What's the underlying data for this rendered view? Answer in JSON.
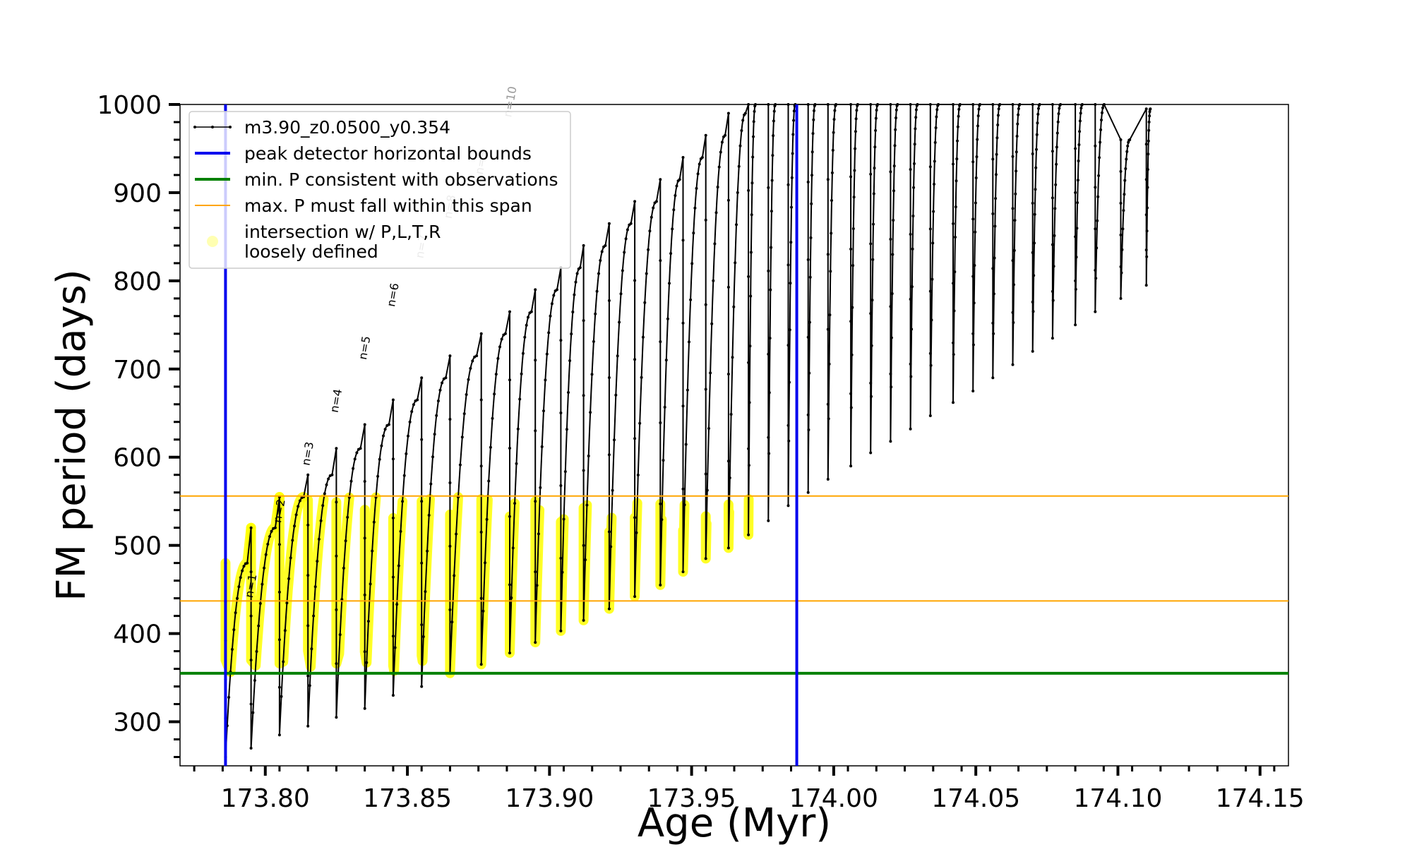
{
  "chart_data": {
    "type": "line",
    "title": "",
    "xlabel": "Age (Myr)",
    "ylabel": "FM period (days)",
    "xlim": [
      173.77,
      174.16
    ],
    "ylim": [
      250,
      1000
    ],
    "xticks": [
      "173.80",
      "173.85",
      "173.90",
      "173.95",
      "174.00",
      "174.05",
      "174.10",
      "174.15"
    ],
    "yticks": [
      "300",
      "400",
      "500",
      "600",
      "700",
      "800",
      "900",
      "1000"
    ],
    "grid": false,
    "legend_position": "upper-left",
    "legend": [
      {
        "label": "m3.90_z0.0500_y0.354",
        "style": "black-line-dots",
        "color": "#000000"
      },
      {
        "label": "peak detector horizontal bounds",
        "style": "line",
        "color": "#0000ee"
      },
      {
        "label": "min. P consistent with observations",
        "style": "line",
        "color": "#008000"
      },
      {
        "label": "max. P must fall within this span",
        "style": "line",
        "color": "#ffa500"
      },
      {
        "label": "intersection w/ P,L,T,R",
        "label2": "loosely defined",
        "style": "marker",
        "color": "#ffff00"
      }
    ],
    "vlines": [
      173.786,
      173.987
    ],
    "hline_min_p": 355,
    "hlines_max_span": [
      437,
      556
    ],
    "series": [
      {
        "name": "m3.90_z0.0500_y0.354",
        "color": "#000000",
        "pulse_ages": [
          173.786,
          173.795,
          173.805,
          173.815,
          173.825,
          173.835,
          173.845,
          173.855,
          173.865,
          173.876,
          173.886,
          173.895,
          173.904,
          173.912,
          173.921,
          173.93,
          173.939,
          173.947,
          173.955,
          173.963,
          173.97,
          173.977,
          173.984,
          173.991,
          173.998,
          174.006,
          174.013,
          174.02,
          174.027,
          174.034,
          174.042,
          174.049,
          174.056,
          174.063,
          174.07,
          174.077,
          174.085,
          174.092,
          174.101,
          174.11
        ],
        "pulse_min_period": [
          260,
          270,
          285,
          295,
          305,
          315,
          330,
          340,
          355,
          365,
          378,
          390,
          403,
          415,
          428,
          442,
          455,
          470,
          485,
          497,
          512,
          528,
          545,
          560,
          575,
          590,
          605,
          618,
          632,
          647,
          662,
          675,
          690,
          705,
          720,
          735,
          750,
          765,
          780,
          795
        ],
        "pulse_max_period": [
          480,
          520,
          555,
          580,
          610,
          637,
          665,
          690,
          715,
          740,
          765,
          790,
          815,
          840,
          865,
          890,
          915,
          940,
          965,
          990,
          1000,
          1000,
          1000,
          1000,
          1000,
          1000,
          1000,
          1000,
          1000,
          1000,
          1000,
          1000,
          1000,
          1000,
          1000,
          1000,
          1000,
          1000,
          960,
          995
        ]
      }
    ],
    "annotations": [
      {
        "text": "n=1",
        "x": 173.7955,
        "y": 440
      },
      {
        "text": "n=2",
        "x": 173.8055,
        "y": 525
      },
      {
        "text": "n=3",
        "x": 173.8155,
        "y": 590
      },
      {
        "text": "n=4",
        "x": 173.8255,
        "y": 650
      },
      {
        "text": "n=5",
        "x": 173.8355,
        "y": 710
      },
      {
        "text": "n=6",
        "x": 173.8455,
        "y": 770
      },
      {
        "text": "n=7",
        "x": 173.8555,
        "y": 825
      },
      {
        "text": "n=8",
        "x": 173.8655,
        "y": 870
      },
      {
        "text": "n=9",
        "x": 173.8765,
        "y": 920
      },
      {
        "text": "n=10",
        "x": 173.8865,
        "y": 985
      }
    ]
  }
}
